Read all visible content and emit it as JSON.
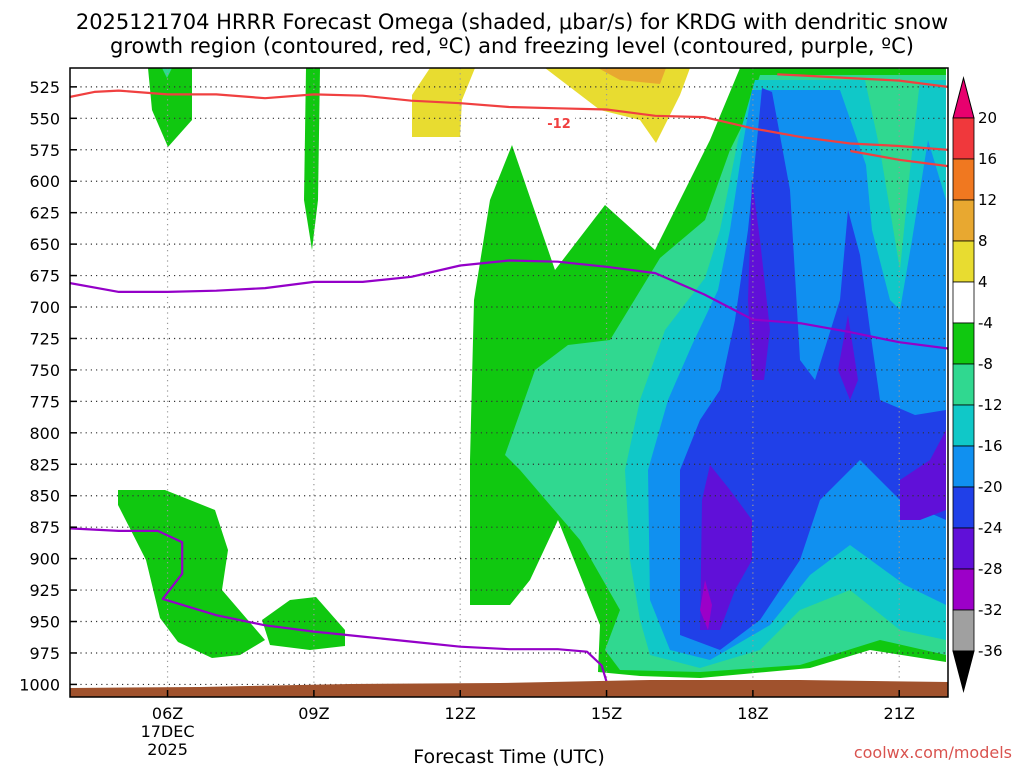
{
  "chart_data": {
    "type": "heatmap",
    "title_line1": "2025121704 HRRR Forecast Omega (shaded, μbar/s) for KRDG with dendritic snow",
    "title_line2": "growth region (contoured, red, ºC) and freezing level (contoured, purple, ºC)",
    "xlabel": "Forecast Time (UTC)",
    "credit": "coolwx.com/models",
    "x_ticks": [
      {
        "hour": 6,
        "label": "06Z",
        "sub1": "17DEC",
        "sub2": "2025"
      },
      {
        "hour": 9,
        "label": "09Z"
      },
      {
        "hour": 12,
        "label": "12Z"
      },
      {
        "hour": 15,
        "label": "15Z"
      },
      {
        "hour": 18,
        "label": "18Z"
      },
      {
        "hour": 21,
        "label": "21Z"
      }
    ],
    "xlim": [
      4,
      22
    ],
    "y_ticks": [
      525,
      550,
      575,
      600,
      625,
      650,
      675,
      700,
      725,
      750,
      775,
      800,
      825,
      850,
      875,
      900,
      925,
      950,
      975,
      1000
    ],
    "ylim_hpa": [
      510,
      1010
    ],
    "colorbar": {
      "labels": [
        "20",
        "16",
        "12",
        "8",
        "4",
        "-4",
        "-8",
        "-12",
        "-16",
        "-20",
        "-24",
        "-28",
        "-32",
        "-36"
      ],
      "colors": [
        "#e8006e",
        "#f0383c",
        "#f07820",
        "#e8a830",
        "#e8dc30",
        "#ffffff",
        "#10c810",
        "#30d890",
        "#10c8c8",
        "#1090f0",
        "#2040e8",
        "#6010d8",
        "#9c00c8",
        "#a0a0a0",
        "#000000"
      ]
    },
    "contour_labels": [
      {
        "text": "-12",
        "color": "#f04040"
      }
    ],
    "series": [
      {
        "color": "#f04040",
        "points": [
          [
            4,
            533
          ],
          [
            4.5,
            529
          ],
          [
            5,
            528
          ],
          [
            6,
            531
          ],
          [
            7,
            531
          ],
          [
            8,
            534
          ],
          [
            9,
            531
          ],
          [
            10,
            532
          ],
          [
            11,
            536
          ],
          [
            12,
            538
          ],
          [
            13,
            541
          ],
          [
            14,
            542
          ],
          [
            15,
            543
          ],
          [
            16,
            548
          ],
          [
            17,
            549
          ],
          [
            18,
            558
          ],
          [
            19,
            565
          ],
          [
            20,
            570
          ],
          [
            21,
            572
          ],
          [
            22,
            575
          ]
        ]
      },
      {
        "color": "#f04040",
        "points": [
          [
            18.5,
            515
          ],
          [
            19,
            516
          ],
          [
            20,
            518
          ],
          [
            21,
            520
          ],
          [
            22,
            525
          ]
        ]
      },
      {
        "color": "#f04040",
        "points": [
          [
            20,
            576
          ],
          [
            21,
            583
          ],
          [
            22,
            588
          ]
        ]
      },
      {
        "color": "#9400c8",
        "points": [
          [
            4,
            681
          ],
          [
            5,
            688
          ],
          [
            6,
            688
          ],
          [
            7,
            687
          ],
          [
            8,
            685
          ],
          [
            9,
            680
          ],
          [
            10,
            680
          ],
          [
            11,
            676
          ],
          [
            12,
            667
          ],
          [
            13,
            663
          ],
          [
            14,
            664
          ],
          [
            15,
            668
          ],
          [
            16,
            673
          ],
          [
            17,
            690
          ],
          [
            18,
            710
          ],
          [
            19,
            713
          ],
          [
            20,
            720
          ],
          [
            21,
            728
          ],
          [
            22,
            733
          ]
        ]
      },
      {
        "color": "#9400c8",
        "points": [
          [
            4,
            876
          ],
          [
            5,
            878
          ],
          [
            5.8,
            878
          ],
          [
            6.3,
            887
          ],
          [
            6.3,
            912
          ],
          [
            5.9,
            932
          ],
          [
            7,
            945
          ],
          [
            8,
            953
          ],
          [
            9,
            958
          ],
          [
            10,
            962
          ],
          [
            11,
            966
          ],
          [
            12,
            970
          ],
          [
            13,
            972
          ],
          [
            14,
            972
          ],
          [
            14.6,
            974
          ],
          [
            14.9,
            985
          ],
          [
            15.0,
            998
          ],
          [
            14.8,
            1006
          ],
          [
            14.4,
            1010
          ]
        ]
      }
    ]
  }
}
